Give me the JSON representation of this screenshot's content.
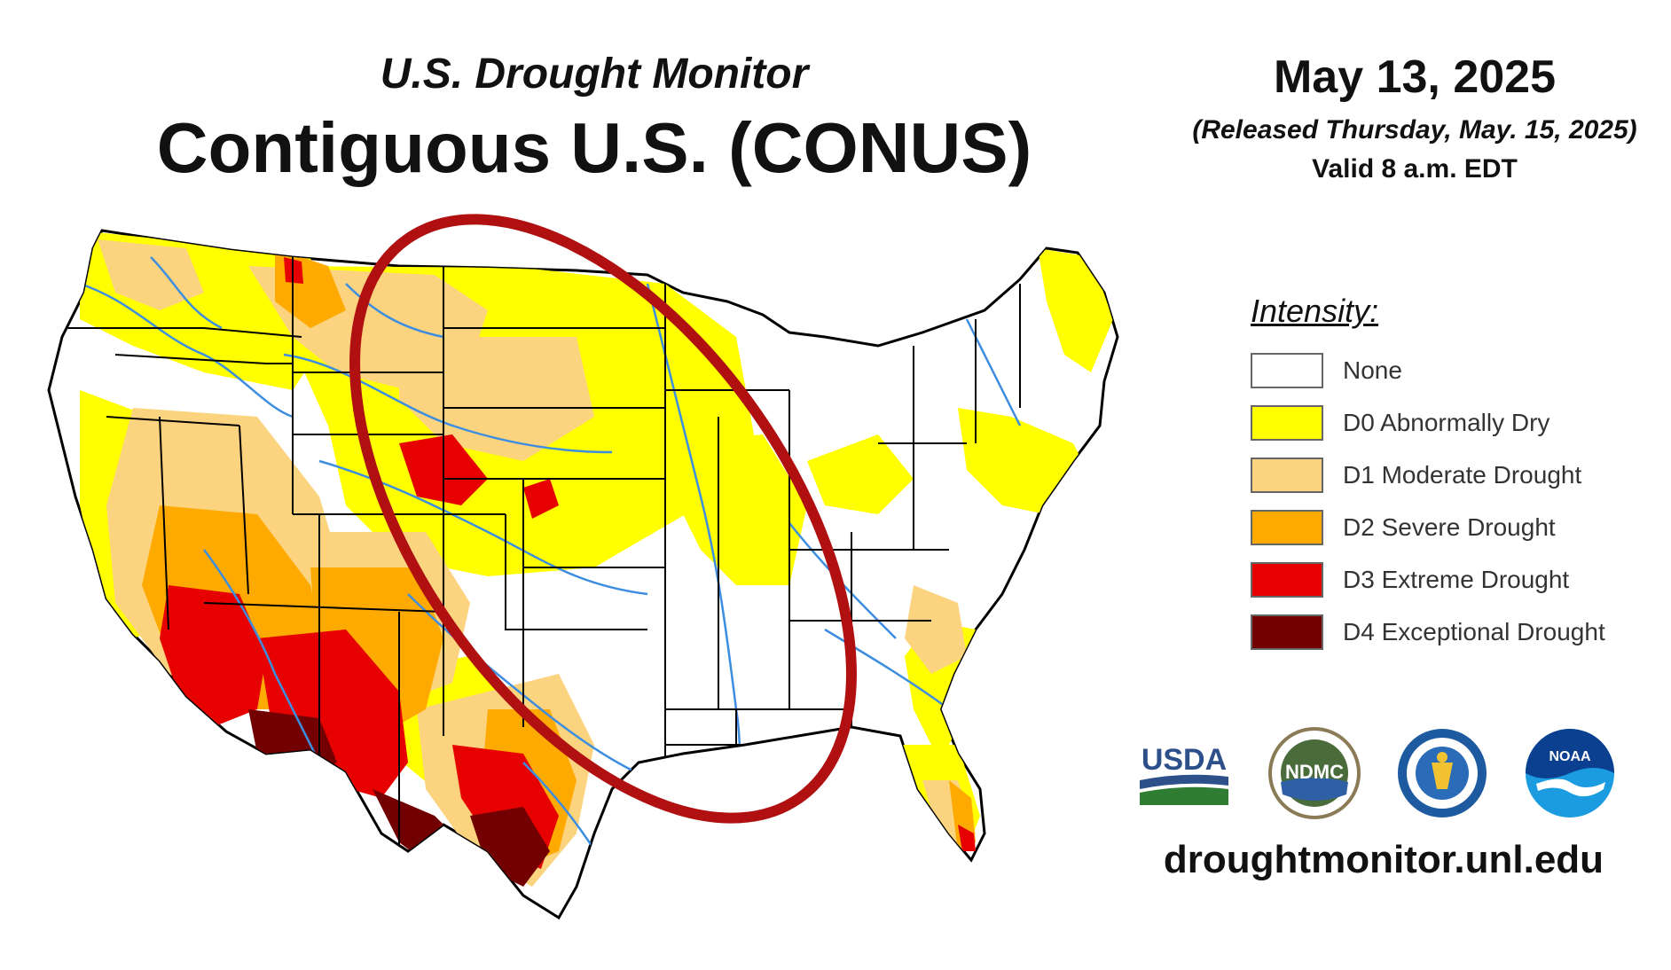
{
  "header": {
    "subtitle": "U.S. Drought Monitor",
    "title": "Contiguous U.S. (CONUS)"
  },
  "date_info": {
    "date": "May 13, 2025",
    "released": "(Released Thursday, May. 15, 2025)",
    "valid": "Valid 8 a.m. EDT"
  },
  "legend": {
    "heading": "Intensity:",
    "items": [
      {
        "label": "None",
        "color": "#ffffff"
      },
      {
        "label": "D0 Abnormally Dry",
        "color": "#ffff00"
      },
      {
        "label": "D1 Moderate Drought",
        "color": "#fcd37f"
      },
      {
        "label": "D2 Severe Drought",
        "color": "#ffaa00"
      },
      {
        "label": "D3 Extreme Drought",
        "color": "#e60000"
      },
      {
        "label": "D4 Exceptional Drought",
        "color": "#730000"
      }
    ]
  },
  "annotation": {
    "shape": "ellipse",
    "color": "#b01010"
  },
  "logos": [
    {
      "name": "usda-logo",
      "text": "USDA"
    },
    {
      "name": "ndmc-logo",
      "text": "NDMC"
    },
    {
      "name": "doc-seal-logo",
      "text": ""
    },
    {
      "name": "noaa-logo",
      "text": "NOAA"
    }
  ],
  "footer": {
    "url": "droughtmonitor.unl.edu"
  },
  "colors": {
    "river": "#3d8ee0",
    "state_border": "#000000"
  }
}
